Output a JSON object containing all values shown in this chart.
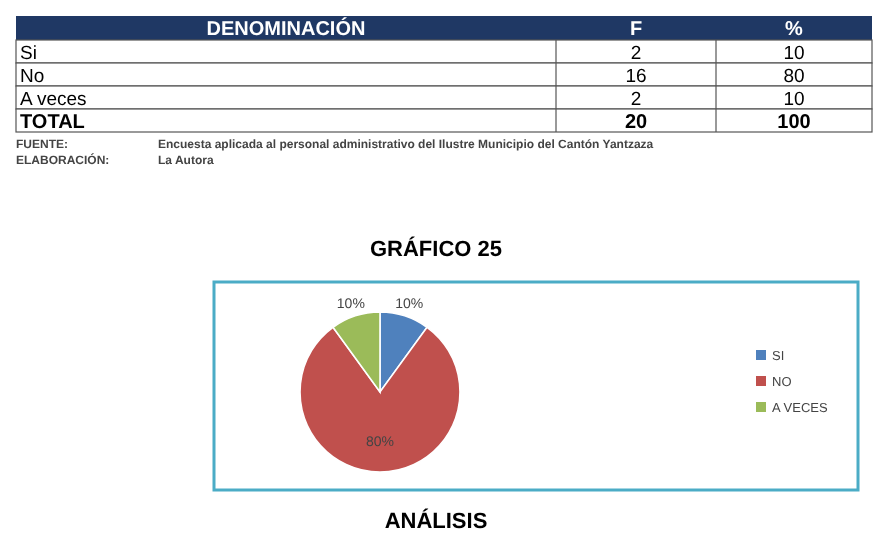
{
  "chart_data": [
    {
      "type": "other",
      "ylabel": "DENOMINACIÓN",
      "categories": [
        "F",
        "%"
      ],
      "y_categories": [
        "Si",
        "No",
        "A veces",
        "TOTAL"
      ],
      "cell_labels": [
        [
          "2",
          "10"
        ],
        [
          "16",
          "80"
        ],
        [
          "2",
          "10"
        ],
        [
          "20",
          "100"
        ]
      ],
      "annotations": [
        "FUENTE:",
        "Encuesta aplicada al personal administrativo del Ilustre Municipio del Cantón Yantzaza",
        "ELABORACIÓN:",
        "La Autora"
      ]
    },
    {
      "type": "pie",
      "title": "GRÁFICO 25",
      "categories": [
        "SI",
        "NO",
        "A VECES"
      ],
      "values": [
        10,
        80,
        10
      ],
      "colors": [
        "#4f81bd",
        "#c0504d",
        "#9bbb59"
      ],
      "value_labels": [
        "10%",
        "80%",
        "10%"
      ],
      "legend": "right",
      "annotations": [
        "ANÁLISIS"
      ]
    }
  ]
}
